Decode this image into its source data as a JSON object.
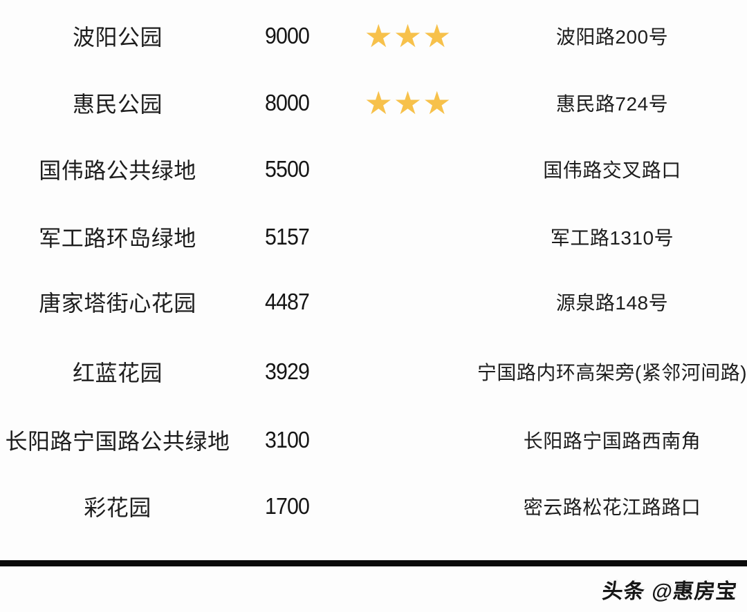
{
  "chart_data": {
    "type": "table",
    "title": "",
    "columns": [
      "name",
      "area",
      "stars",
      "address"
    ],
    "rows": [
      {
        "name": "波阳公园",
        "area": "9000",
        "stars": 3,
        "stars_text": "★★★",
        "address": "波阳路200号"
      },
      {
        "name": "惠民公园",
        "area": "8000",
        "stars": 3,
        "stars_text": "★★★",
        "address": "惠民路724号"
      },
      {
        "name": "国伟路公共绿地",
        "area": "5500",
        "stars": 0,
        "stars_text": "",
        "address": "国伟路交叉路口"
      },
      {
        "name": "军工路环岛绿地",
        "area": "5157",
        "stars": 0,
        "stars_text": "",
        "address": "军工路1310号"
      },
      {
        "name": "唐家塔街心花园",
        "area": "4487",
        "stars": 0,
        "stars_text": "",
        "address": "源泉路148号"
      },
      {
        "name": "红蓝花园",
        "area": "3929",
        "stars": 0,
        "stars_text": "",
        "address": "宁国路内环高架旁(紧邻河间路)"
      },
      {
        "name": "长阳路宁国路公共绿地",
        "area": "3100",
        "stars": 0,
        "stars_text": "",
        "address": "长阳路宁国路西南角"
      },
      {
        "name": "彩花园",
        "area": "1700",
        "stars": 0,
        "stars_text": "",
        "address": "密云路松花江路路口"
      }
    ]
  },
  "watermark": {
    "platform": "头条",
    "handle": "@惠房宝"
  },
  "colors": {
    "star": "#F7C14B",
    "text": "#1d1d1d",
    "bottom_bar": "#0b0b0b",
    "background": "#fdfdfd"
  },
  "icons": {
    "star_glyph": "★"
  }
}
